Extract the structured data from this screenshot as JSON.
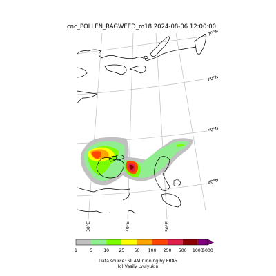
{
  "title": "cnc_POLLEN_RAGWEED_m18 2024-08-06 12:00:00",
  "lat_labels": [
    "70°N",
    "60°N",
    "50°N",
    "40°N"
  ],
  "lon_labels": [
    "30°E",
    "40°E",
    "50°E"
  ],
  "colorbar": {
    "ticks": [
      "1",
      "5",
      "10",
      "25",
      "50",
      "100",
      "250",
      "500",
      "1000",
      "5000"
    ],
    "colors": [
      "#c0c0c0",
      "#90ee90",
      "#7cfc00",
      "#ffff00",
      "#ffa500",
      "#ff4500",
      "#e0204a",
      "#8b0000",
      "#800080"
    ]
  },
  "credits": {
    "source": "Data source: SILAM running by ERA5",
    "author": "(c) Vasily Lyulyukin"
  }
}
